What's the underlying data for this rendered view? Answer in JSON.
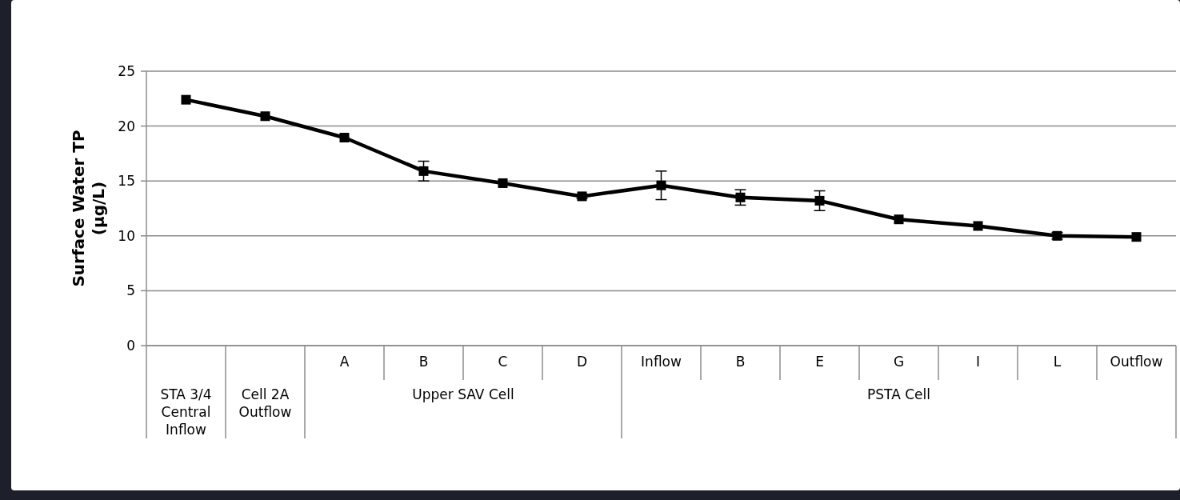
{
  "chart_data": {
    "type": "line",
    "ylabel": "Surface Water TP (µg/L)",
    "categories": [
      null,
      null,
      "A",
      "B",
      "C",
      "D",
      "Inflow",
      "B",
      "E",
      "G",
      "I",
      "L",
      "Outflow"
    ],
    "series": [
      {
        "color": "#000000",
        "values": [
          22.4,
          20.9,
          18.95,
          15.9,
          14.8,
          13.6,
          14.6,
          13.5,
          13.2,
          11.5,
          10.9,
          10.0,
          9.9
        ],
        "errors": [
          null,
          null,
          null,
          0.9,
          null,
          0.2,
          1.3,
          0.7,
          0.9,
          null,
          null,
          0.3,
          null
        ]
      }
    ],
    "annotations": [
      "STA 3/4 Central Inflow",
      "Cell 2A Outflow",
      "Upper SAV Cell",
      "PSTA Cell"
    ],
    "ylim": [
      0,
      25
    ],
    "yticks": [
      0,
      5,
      10,
      15,
      20,
      25
    ],
    "grid": "y",
    "marker": "square",
    "line_style": "solid"
  }
}
